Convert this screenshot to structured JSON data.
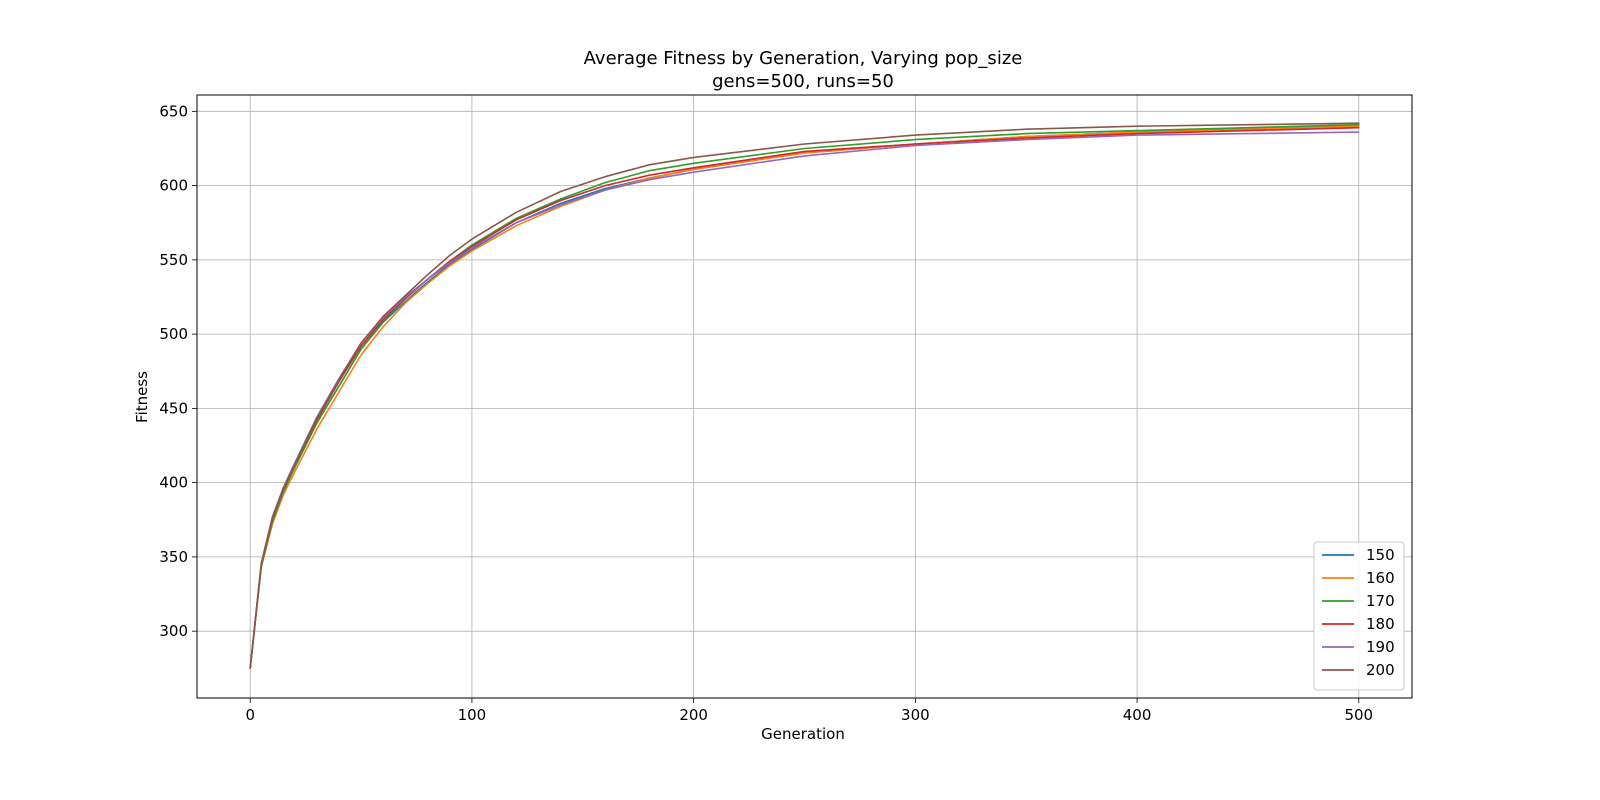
{
  "chart_data": {
    "type": "line",
    "title": "Average Fitness by Generation, Varying pop_size",
    "subtitle": "gens=500, runs=50",
    "xlabel": "Generation",
    "ylabel": "Fitness",
    "xlim": [
      -24,
      524
    ],
    "ylim": [
      255,
      661
    ],
    "xticks": [
      0,
      100,
      200,
      300,
      400,
      500
    ],
    "yticks": [
      300,
      350,
      400,
      450,
      500,
      550,
      600,
      650
    ],
    "grid": true,
    "legend_position": "lower-right",
    "x": [
      0,
      5,
      10,
      15,
      20,
      30,
      40,
      50,
      60,
      70,
      80,
      90,
      100,
      120,
      140,
      160,
      180,
      200,
      250,
      300,
      350,
      400,
      450,
      500
    ],
    "series": [
      {
        "name": "150",
        "color": "#1f77b4",
        "values": [
          275,
          345,
          375,
          395,
          410,
          440,
          465,
          490,
          508,
          522,
          535,
          547,
          557,
          575,
          588,
          598,
          605,
          611,
          622,
          628,
          633,
          636,
          638,
          640
        ]
      },
      {
        "name": "160",
        "color": "#ff7f0e",
        "values": [
          275,
          343,
          372,
          392,
          407,
          436,
          461,
          486,
          505,
          521,
          534,
          546,
          556,
          573,
          586,
          597,
          605,
          611,
          622,
          628,
          633,
          636,
          638,
          640
        ]
      },
      {
        "name": "170",
        "color": "#2ca02c",
        "values": [
          275,
          344,
          374,
          394,
          410,
          440,
          465,
          490,
          509,
          524,
          537,
          549,
          560,
          578,
          591,
          602,
          610,
          615,
          625,
          631,
          635,
          637,
          639,
          641
        ]
      },
      {
        "name": "180",
        "color": "#d62728",
        "values": [
          275,
          345,
          376,
          396,
          412,
          442,
          468,
          492,
          510,
          524,
          537,
          549,
          559,
          577,
          590,
          600,
          607,
          612,
          623,
          628,
          632,
          635,
          637,
          639
        ]
      },
      {
        "name": "190",
        "color": "#9467bd",
        "values": [
          275,
          346,
          377,
          397,
          413,
          444,
          470,
          494,
          511,
          525,
          537,
          548,
          558,
          575,
          587,
          597,
          604,
          609,
          620,
          627,
          631,
          634,
          635,
          636
        ]
      },
      {
        "name": "200",
        "color": "#8c564b",
        "values": [
          275,
          345,
          376,
          396,
          412,
          443,
          469,
          494,
          512,
          526,
          540,
          553,
          564,
          582,
          596,
          606,
          614,
          619,
          628,
          634,
          638,
          640,
          641,
          642
        ]
      }
    ]
  }
}
